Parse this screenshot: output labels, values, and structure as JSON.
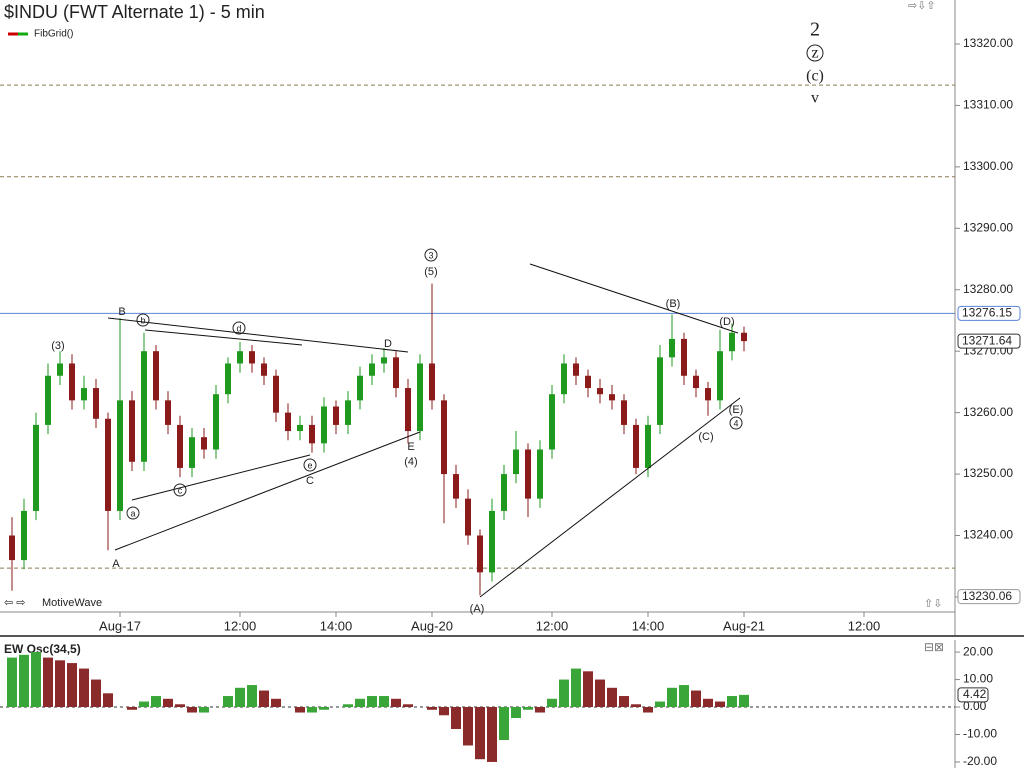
{
  "chart_data": {
    "type": "candlestick",
    "title": "$INDU (FWT Alternate 1) - 5 min",
    "legend": "FibGrid()",
    "footer": "MotiveWave",
    "categories": [
      null,
      null,
      null,
      null,
      null,
      null,
      null,
      null,
      null,
      "Aug-17",
      null,
      null,
      null,
      null,
      null,
      null,
      null,
      null,
      null,
      "12:00",
      null,
      null,
      null,
      null,
      null,
      null,
      null,
      "14:00",
      null,
      null,
      null,
      null,
      null,
      null,
      null,
      "Aug-20",
      null,
      null,
      null,
      null,
      null,
      null,
      null,
      null,
      null,
      "12:00",
      null,
      null,
      null,
      null,
      null,
      null,
      null,
      "14:00",
      null,
      null,
      null,
      null,
      null,
      null,
      null,
      "Aug-21",
      null,
      null,
      null,
      null,
      null,
      null,
      null,
      null,
      null,
      "12:00",
      null,
      null,
      null,
      null,
      null,
      null
    ],
    "open": [
      13240,
      13236,
      13244,
      13258,
      13266,
      13268,
      13262,
      13264,
      13259,
      13244,
      13262,
      13252,
      13270,
      13262,
      13258,
      13251,
      13256,
      13254,
      13263,
      13268,
      13270,
      13268,
      13266,
      13260,
      13257,
      13258,
      13255,
      13261,
      13258,
      13262,
      13266,
      13268,
      13269,
      13264,
      13257,
      13268,
      13262,
      13250,
      13246,
      13240,
      13234,
      13244,
      13250,
      13254,
      13246,
      13254,
      13263,
      13268,
      13266,
      13264,
      13263,
      13262,
      13258,
      13251,
      13258,
      13269,
      13272,
      13266,
      13264,
      13262,
      13270,
      13273,
      null,
      null,
      null,
      null,
      null,
      null,
      null,
      null,
      null,
      null,
      null,
      null,
      null,
      null,
      null,
      null
    ],
    "high": [
      13243,
      13246,
      13260,
      13268,
      13270,
      13269.5,
      13266,
      13265.5,
      13260,
      13275.4,
      13263.5,
      13273,
      13271,
      13263.5,
      13259.5,
      13257.5,
      13257.5,
      13264.5,
      13269,
      13271.5,
      13271,
      13269,
      13267,
      13261.5,
      13259.5,
      13259.5,
      13262.5,
      13262,
      13263.5,
      13267.5,
      13269.5,
      13270.5,
      13270,
      13265.5,
      13269.5,
      13281,
      13263,
      13251.5,
      13247.5,
      13241,
      13246,
      13251.5,
      13257,
      13255,
      13255.5,
      13264.5,
      13269.5,
      13269,
      13267,
      13265.5,
      13264.5,
      13263,
      13259,
      13259.5,
      13271,
      13276,
      13273,
      13267,
      13265,
      13273.5,
      13274.5,
      13274,
      null,
      null,
      null,
      null,
      null,
      null,
      null,
      null,
      null,
      null,
      null,
      null,
      null,
      null,
      null,
      null
    ],
    "low": [
      13231,
      13234.5,
      13242.5,
      13256.5,
      13264.5,
      13260.5,
      13260.5,
      13257.5,
      13237.6,
      13242.5,
      13250.5,
      13250.5,
      13260.5,
      13256.5,
      13249.5,
      13249.5,
      13252.5,
      13252.5,
      13261.5,
      13266.5,
      13266.5,
      13264.5,
      13258.5,
      13255.5,
      13255.5,
      13253.5,
      13253.5,
      13256.5,
      13256.5,
      13260.5,
      13264.5,
      13266.5,
      13262.5,
      13255,
      13255.5,
      13260.5,
      13242,
      13244.5,
      13238.5,
      13230.3,
      13232.5,
      13242.5,
      13248.5,
      13243,
      13244.5,
      13252.5,
      13261.5,
      13264.5,
      13262.5,
      13261.5,
      13260.5,
      13256.5,
      13250,
      13249.5,
      13256.5,
      13267.5,
      13264.5,
      13262.5,
      13259.5,
      13260.5,
      13268.5,
      13270,
      null,
      null,
      null,
      null,
      null,
      null,
      null,
      null,
      null,
      null,
      null,
      null,
      null,
      null,
      null,
      null
    ],
    "close": [
      13236,
      13244,
      13258,
      13266,
      13268,
      13262,
      13264,
      13259,
      13244,
      13262,
      13252,
      13270,
      13262,
      13258,
      13251,
      13256,
      13254,
      13263,
      13268,
      13270,
      13268,
      13266,
      13260,
      13257,
      13258,
      13255,
      13261,
      13258,
      13262,
      13266,
      13268,
      13269,
      13264,
      13257,
      13268,
      13262,
      13250,
      13246,
      13240,
      13234,
      13244,
      13250,
      13254,
      13246,
      13254,
      13263,
      13268,
      13266,
      13264,
      13263,
      13262,
      13258,
      13251,
      13258,
      13269,
      13272,
      13266,
      13264,
      13262,
      13270,
      13273,
      13271.64,
      null,
      null,
      null,
      null,
      null,
      null,
      null,
      null,
      null,
      null,
      null,
      null,
      null,
      null,
      null,
      null
    ],
    "up_color": "#1f9a1f",
    "down_color": "#8b1a1a",
    "ylim": [
      13227.55,
      13327.16
    ],
    "yticks": [
      {
        "value": 13230,
        "label": "13230.00"
      },
      {
        "value": 13240,
        "label": "13240.00"
      },
      {
        "value": 13250,
        "label": "13250.00"
      },
      {
        "value": 13260,
        "label": "13260.00"
      },
      {
        "value": 13270,
        "label": "13270.00"
      },
      {
        "value": 13280,
        "label": "13280.00"
      },
      {
        "value": 13290,
        "label": "13290.00"
      },
      {
        "value": 13300,
        "label": "13300.00"
      },
      {
        "value": 13310,
        "label": "13310.00"
      },
      {
        "value": 13320,
        "label": "13320.00"
      }
    ],
    "fib_levels": [
      13313.3,
      13298.4,
      13234.7
    ],
    "price_markers": [
      {
        "value": 13276.15,
        "label": "13276.15",
        "color": "#5b84d6"
      },
      {
        "value": 13271.64,
        "label": "13271.64",
        "color": "#333333"
      },
      {
        "value": 13230.06,
        "label": "13230.06",
        "color": "#999999"
      }
    ],
    "annotations": [
      "(3)",
      "B",
      "b",
      "d",
      "D",
      "3",
      "(5)",
      "(B)",
      "(D)",
      "(E)",
      "4",
      "(C)",
      "E",
      "(4)",
      "e",
      "C",
      "c",
      "a",
      "A",
      "(A)",
      "2",
      "z",
      "(c)",
      "v"
    ],
    "oscillator": {
      "name": "EW Osc(34,5)",
      "values": [
        18,
        19,
        20,
        18,
        17,
        16,
        14,
        10,
        5,
        0,
        -1,
        2,
        4,
        3,
        1,
        -2,
        -2,
        0,
        4,
        7,
        8,
        6,
        3,
        0,
        -2,
        -2,
        -1,
        0,
        1,
        3,
        4,
        4,
        3,
        1,
        0,
        -1,
        -3,
        -8,
        -14,
        -19,
        -20,
        -12,
        -4,
        -1,
        -2,
        3,
        10,
        14,
        13,
        10,
        7,
        4,
        1,
        -2,
        2,
        7,
        8,
        6,
        3,
        2,
        4,
        4.42,
        null,
        null,
        null,
        null,
        null,
        null,
        null,
        null,
        null,
        null,
        null,
        null,
        null,
        null,
        null,
        null
      ],
      "up_color": "#3aa63a",
      "down_color": "#8b2a2a",
      "ylim": [
        -22.2,
        24.4
      ],
      "yticks": [
        {
          "value": 20,
          "label": "20.00"
        },
        {
          "value": 10,
          "label": "10.00"
        },
        {
          "value": 0,
          "label": "0.00"
        },
        {
          "value": -10,
          "label": "-10.00"
        },
        {
          "value": -20,
          "label": "-20.00"
        }
      ],
      "last": {
        "value": 4.42,
        "label": "4.42"
      }
    }
  }
}
